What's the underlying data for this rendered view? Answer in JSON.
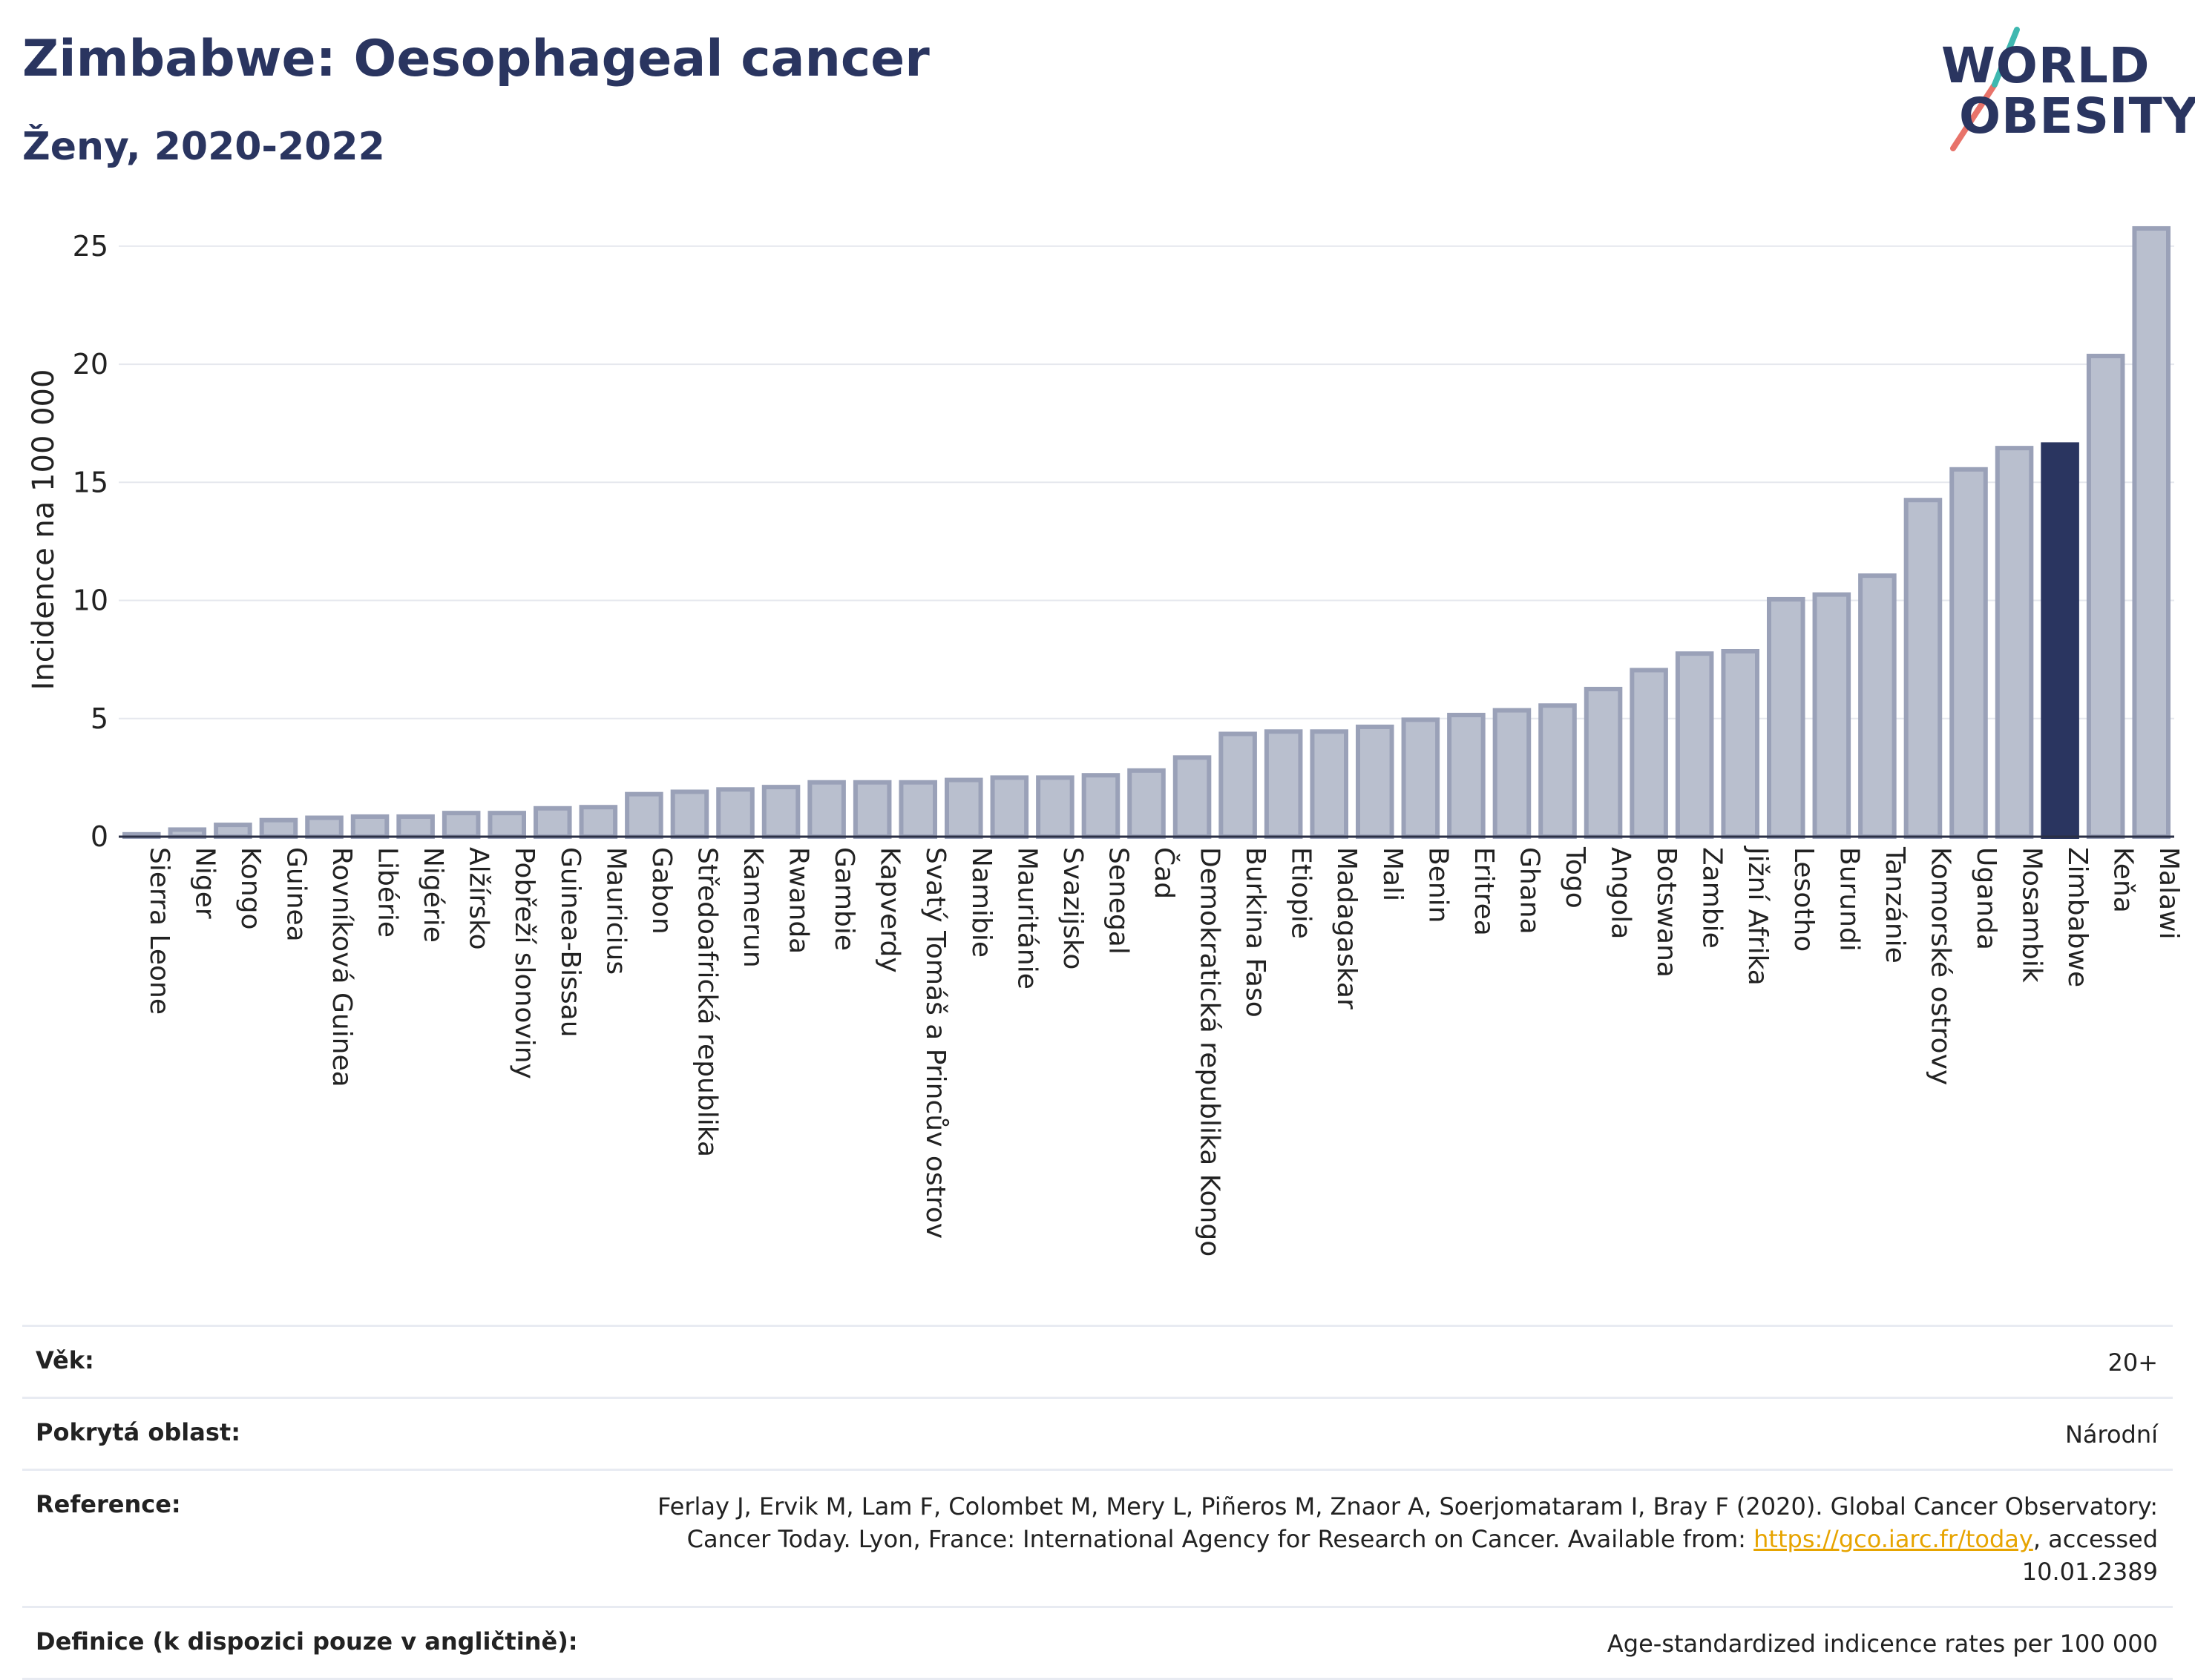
{
  "header": {
    "title": "Zimbabwe: Oesophageal cancer",
    "subtitle": "Ženy, 2020-2022"
  },
  "logo": {
    "line1": "WORLD",
    "line2": "OBESITY",
    "colors": {
      "text": "#2a3560",
      "slash_red": "#e8736a",
      "slash_teal": "#3fb8b0"
    }
  },
  "chart_data": {
    "type": "bar",
    "ylabel": "Incidence na 100 000",
    "xlabel": "",
    "ylim": [
      0,
      26
    ],
    "yticks": [
      0,
      5,
      10,
      15,
      20,
      25
    ],
    "grid": true,
    "highlight": "Zimbabwe",
    "colors": {
      "bar": "#b9bfce",
      "bar_edge": "#9aa1b8",
      "highlight": "#2a3560"
    },
    "categories": [
      "Sierra Leone",
      "Niger",
      "Kongo",
      "Guinea",
      "Rovníková Guinea",
      "Libérie",
      "Nigérie",
      "Alžírsko",
      "Pobřeží slonoviny",
      "Guinea-Bissau",
      "Mauricius",
      "Gabon",
      "Středoafrická republika",
      "Kamerun",
      "Rwanda",
      "Gambie",
      "Kapverdy",
      "Svatý Tomáš a Princův ostrov",
      "Namibie",
      "Mauritánie",
      "Svazijsko",
      "Senegal",
      "Čad",
      "Demokratická republika Kongo",
      "Burkina Faso",
      "Etiopie",
      "Madagaskar",
      "Mali",
      "Benin",
      "Eritrea",
      "Ghana",
      "Togo",
      "Angola",
      "Botswana",
      "Zambie",
      "Jižní Afrika",
      "Lesotho",
      "Burundi",
      "Tanzánie",
      "Komorské ostrovy",
      "Uganda",
      "Mosambik",
      "Zimbabwe",
      "Keňa",
      "Malawi"
    ],
    "values": [
      0.1,
      0.3,
      0.5,
      0.7,
      0.8,
      0.85,
      0.85,
      1.0,
      1.0,
      1.2,
      1.25,
      1.8,
      1.9,
      2.0,
      2.1,
      2.3,
      2.3,
      2.3,
      2.4,
      2.5,
      2.5,
      2.6,
      2.8,
      3.35,
      4.35,
      4.45,
      4.45,
      4.65,
      4.95,
      5.15,
      5.35,
      5.55,
      6.25,
      7.05,
      7.75,
      7.85,
      10.05,
      10.25,
      11.05,
      14.25,
      15.55,
      16.45,
      16.6,
      20.35,
      25.75
    ]
  },
  "info": {
    "age_label": "Věk:",
    "age_value": "20+",
    "coverage_label": "Pokrytá oblast:",
    "coverage_value": "Národní",
    "reference_label": "Reference:",
    "reference_text": "Ferlay J, Ervik M, Lam F, Colombet M, Mery L, Piñeros M, Znaor A, Soerjomataram I, Bray F (2020). Global Cancer Observatory: Cancer Today. Lyon, France: International Agency for Research on Cancer. Available from: ",
    "reference_link": "https://gco.iarc.fr/today",
    "reference_suffix": ", accessed 10.01.2389",
    "definition_label": "Definice (k dispozici pouze v angličtině):",
    "definition_value": "Age-standardized indicence rates per 100 000"
  }
}
